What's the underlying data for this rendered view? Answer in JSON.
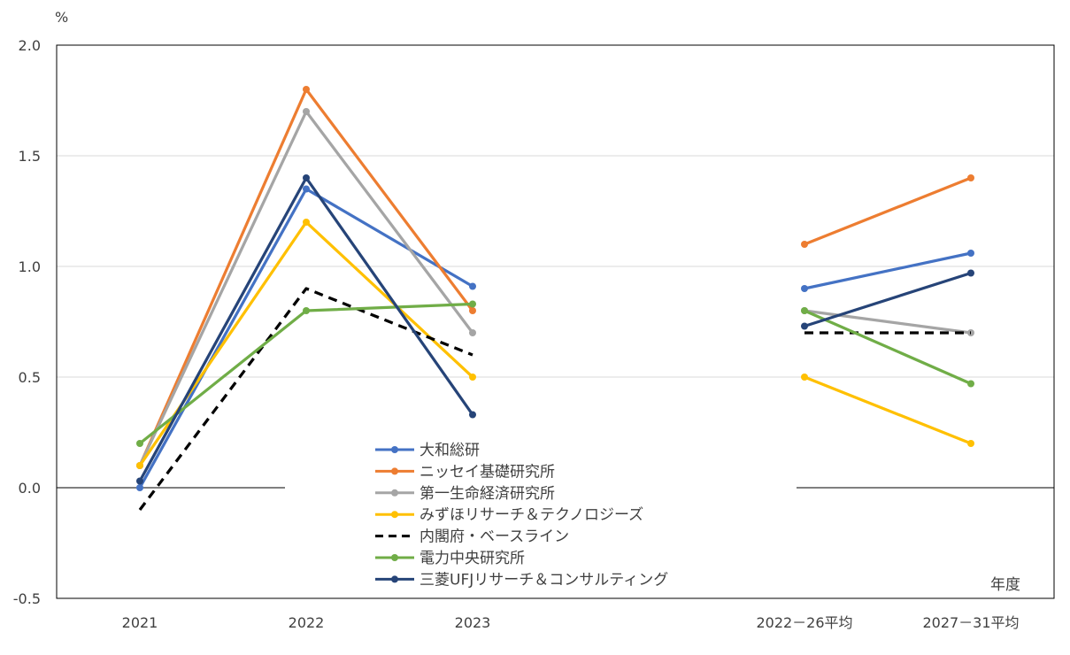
{
  "chart_data": {
    "type": "line",
    "ylabel": "%",
    "xlabel": "年度",
    "ylim": [
      -0.5,
      2.0
    ],
    "y_ticks": [
      "2.0",
      "1.5",
      "1.0",
      "0.5",
      "0.0",
      "-0.5"
    ],
    "y_tick_values": [
      2.0,
      1.5,
      1.0,
      0.5,
      0.0,
      -0.5
    ],
    "categories": [
      "2021",
      "2022",
      "2023",
      "2022－26平均",
      "2027－31平均"
    ],
    "grid": true,
    "legend_position": "bottom-center",
    "series": [
      {
        "name": "大和総研",
        "color": "#4472C4",
        "dashed": false,
        "values": [
          0.0,
          1.35,
          0.91,
          0.9,
          1.06
        ]
      },
      {
        "name": "ニッセイ基礎研究所",
        "color": "#ED7D31",
        "dashed": false,
        "values": [
          0.1,
          1.8,
          0.8,
          1.1,
          1.4
        ]
      },
      {
        "name": "第一生命経済研究所",
        "color": "#A5A5A5",
        "dashed": false,
        "values": [
          0.1,
          1.7,
          0.7,
          0.8,
          0.7
        ]
      },
      {
        "name": "みずほリサーチ＆テクノロジーズ",
        "color": "#FFC000",
        "dashed": false,
        "values": [
          0.1,
          1.2,
          0.5,
          0.5,
          0.2
        ]
      },
      {
        "name": "内閣府・ベースライン",
        "color": "#000000",
        "dashed": true,
        "values": [
          -0.1,
          0.9,
          0.6,
          0.7,
          0.7
        ]
      },
      {
        "name": "電力中央研究所",
        "color": "#70AD47",
        "dashed": false,
        "values": [
          0.2,
          0.8,
          0.83,
          0.8,
          0.47
        ]
      },
      {
        "name": "三菱UFJリサーチ＆コンサルティング",
        "color": "#264478",
        "dashed": false,
        "values": [
          0.03,
          1.4,
          0.33,
          0.73,
          0.97
        ]
      }
    ]
  }
}
